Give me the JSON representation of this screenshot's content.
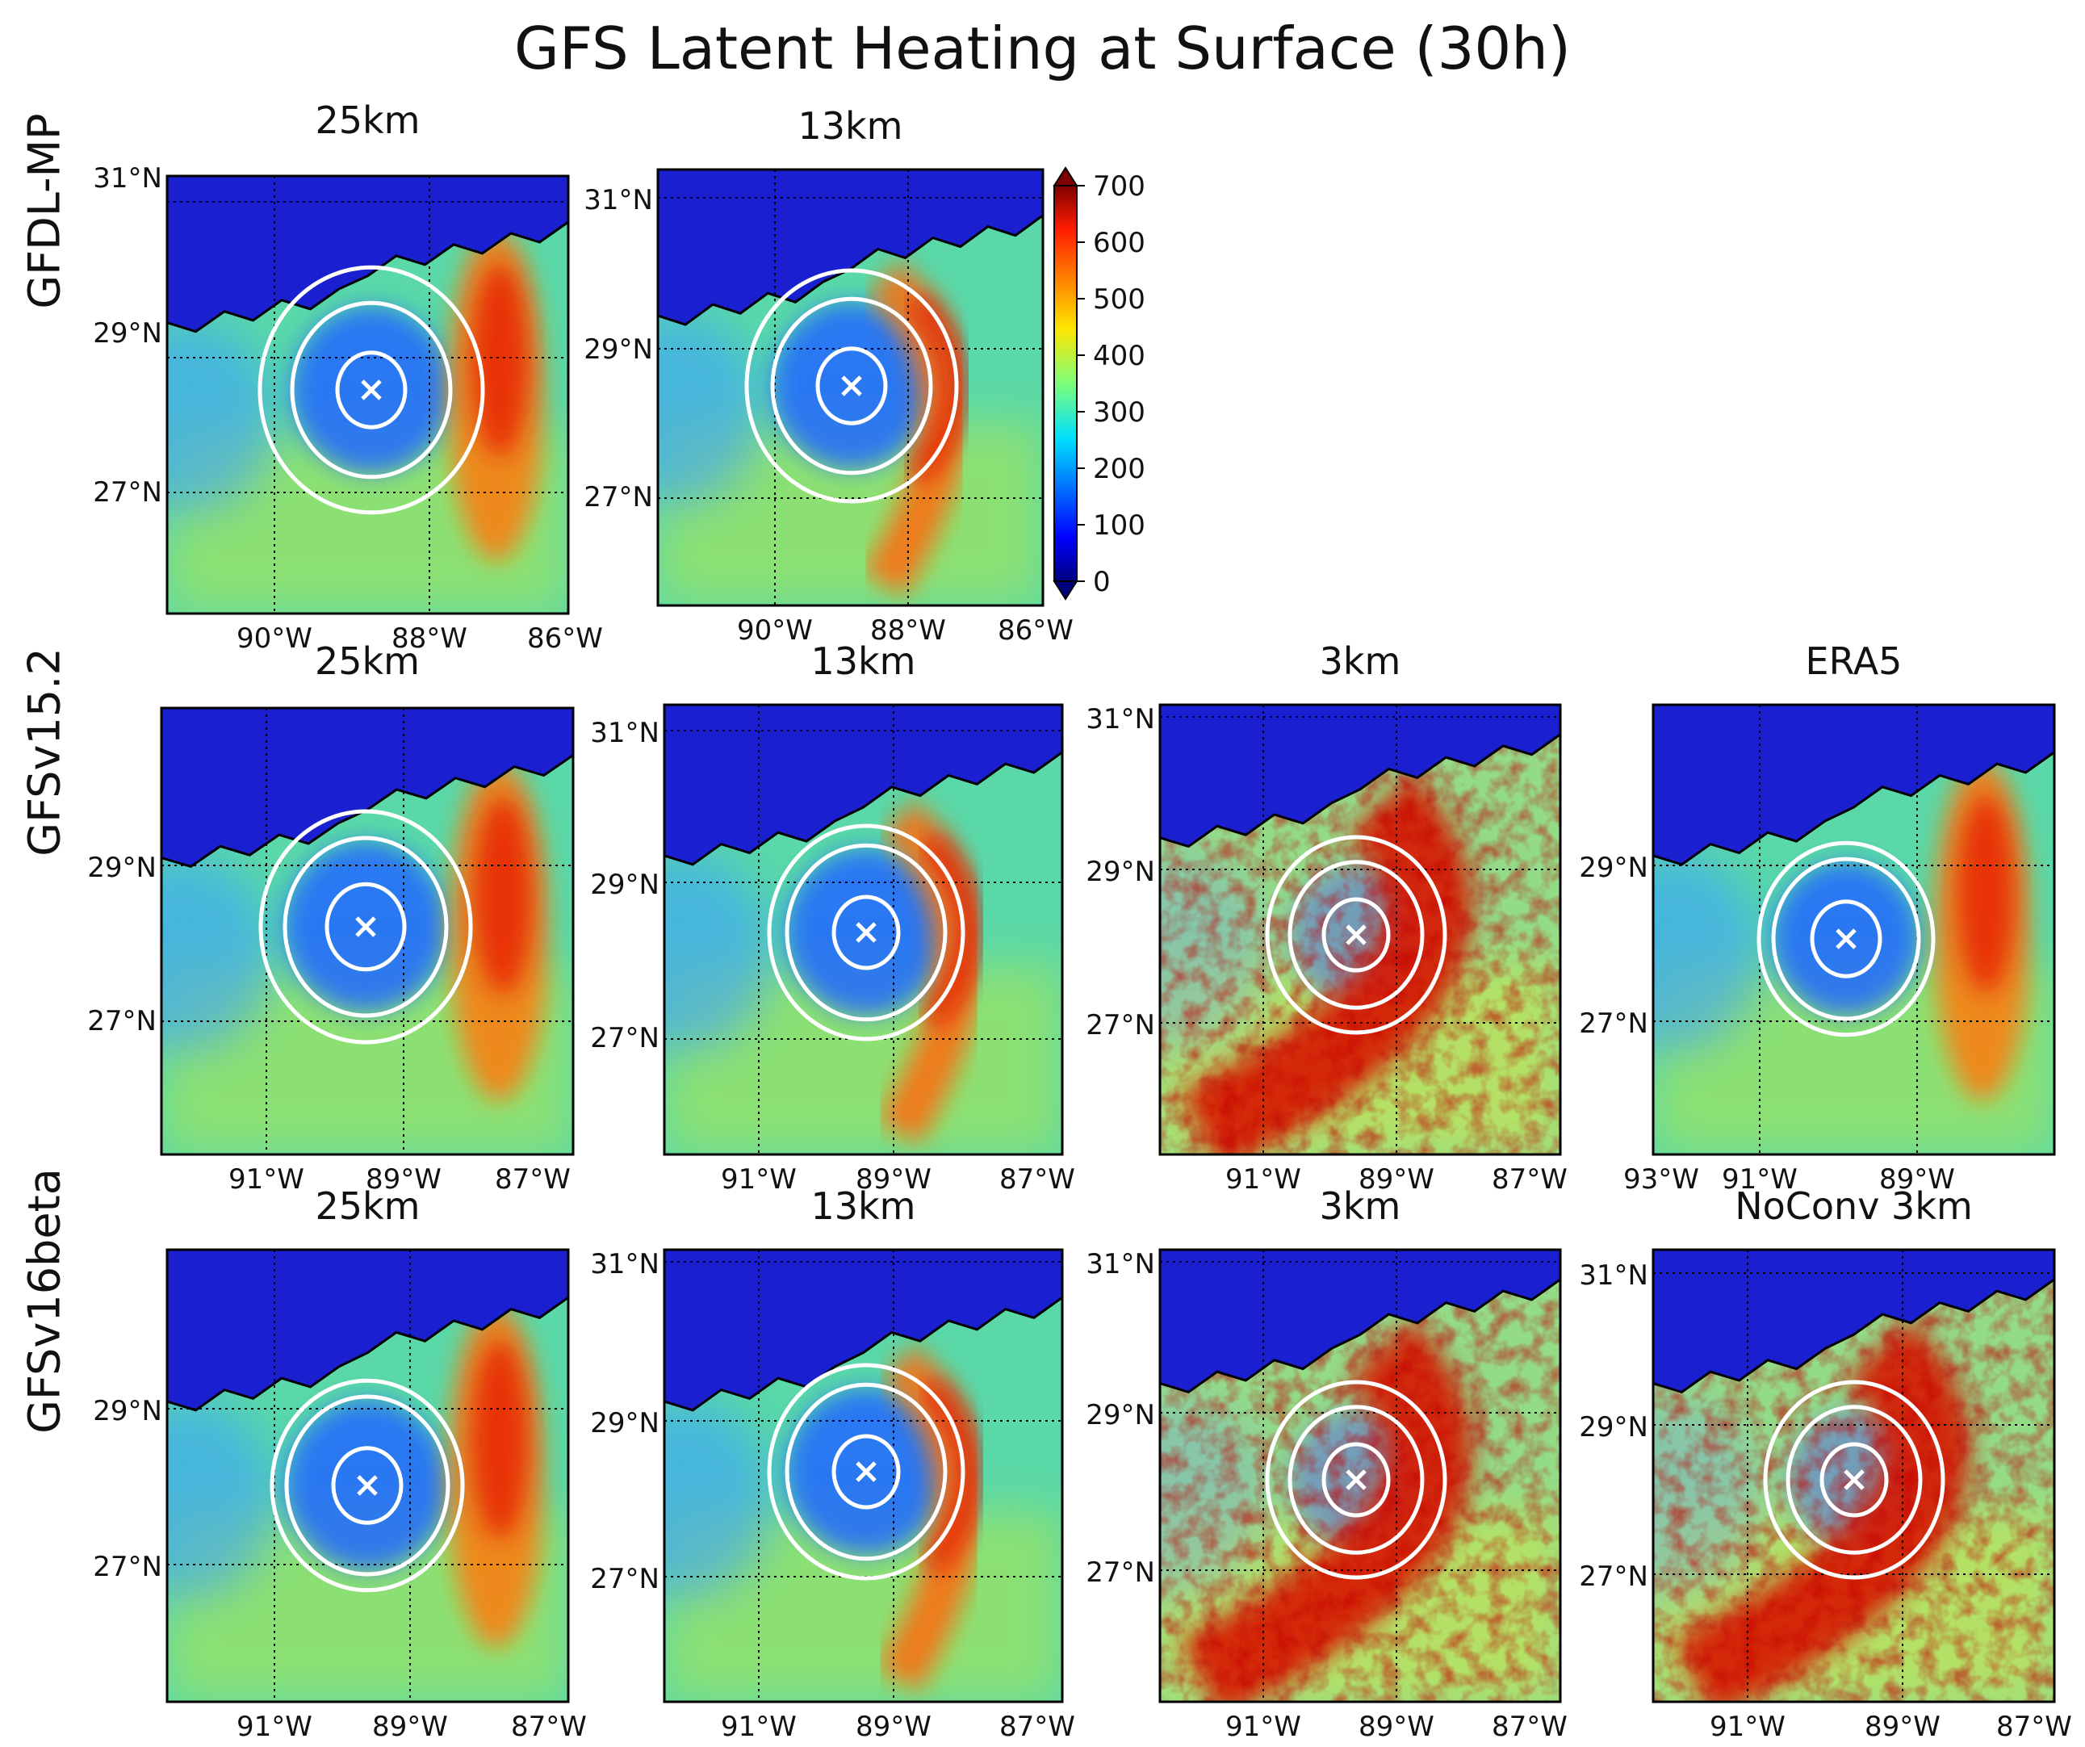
{
  "figure_title": "GFS Latent Heating at Surface (30h)",
  "row_labels": [
    "GFDL-MP",
    "GFSv15.2",
    "GFSv16beta"
  ],
  "colorbar": {
    "ticks": [
      "700",
      "600",
      "500",
      "400",
      "300",
      "200",
      "100",
      "0"
    ],
    "min": 0,
    "max": 700,
    "colormap": "jet"
  },
  "colors": {
    "land": "#1a1fd0",
    "ocean_mid": "#5ad8a8",
    "coast": "#000000",
    "rings": "#ffffff",
    "center_marker": "#ffffff"
  },
  "panels": [
    {
      "title": "25km",
      "lat_ticks": [
        "31°N",
        "29°N",
        "27°N"
      ],
      "lon_ticks": [
        "90°W",
        "88°W",
        "86°W"
      ]
    },
    {
      "title": "13km",
      "lat_ticks": [
        "31°N",
        "29°N",
        "27°N"
      ],
      "lon_ticks": [
        "90°W",
        "88°W",
        "86°W"
      ]
    },
    {
      "title": "25km",
      "lat_ticks": [
        "29°N",
        "27°N"
      ],
      "lon_ticks": [
        "91°W",
        "89°W",
        "87°W"
      ]
    },
    {
      "title": "13km",
      "lat_ticks": [
        "31°N",
        "29°N",
        "27°N"
      ],
      "lon_ticks": [
        "91°W",
        "89°W",
        "87°W"
      ]
    },
    {
      "title": "3km",
      "lat_ticks": [
        "31°N",
        "29°N",
        "27°N"
      ],
      "lon_ticks": [
        "91°W",
        "89°W",
        "87°W"
      ]
    },
    {
      "title": "ERA5",
      "lat_ticks": [
        "29°N",
        "27°N"
      ],
      "lon_ticks": [
        "93°W",
        "91°W",
        "89°W"
      ]
    },
    {
      "title": "25km",
      "lat_ticks": [
        "29°N",
        "27°N"
      ],
      "lon_ticks": [
        "91°W",
        "89°W",
        "87°W"
      ]
    },
    {
      "title": "13km",
      "lat_ticks": [
        "31°N",
        "29°N",
        "27°N"
      ],
      "lon_ticks": [
        "91°W",
        "89°W",
        "87°W"
      ]
    },
    {
      "title": "3km",
      "lat_ticks": [
        "31°N",
        "29°N",
        "27°N"
      ],
      "lon_ticks": [
        "91°W",
        "89°W",
        "87°W"
      ]
    },
    {
      "title": "NoConv 3km",
      "lat_ticks": [
        "31°N",
        "29°N",
        "27°N"
      ],
      "lon_ticks": [
        "91°W",
        "89°W",
        "87°W"
      ]
    }
  ],
  "chart_data": {
    "type": "heatmap",
    "title": "GFS Latent Heating at Surface (30h)",
    "variable": "surface latent heat flux",
    "value_range": [
      0,
      700
    ],
    "rows": [
      "GFDL-MP",
      "GFSv15.2",
      "GFSv16beta"
    ],
    "panels": [
      {
        "row": "GFDL-MP",
        "title": "25km",
        "lat_range": [
          25.5,
          31.3
        ],
        "lon_range": [
          -91.5,
          -85.9
        ],
        "storm_center": {
          "lat": 28.3,
          "lon": -88.8
        },
        "max_band": "east of center (~600-650)"
      },
      {
        "row": "GFDL-MP",
        "title": "13km",
        "lat_range": [
          25.5,
          31.3
        ],
        "lon_range": [
          -91.5,
          -85.9
        ],
        "storm_center": {
          "lat": 28.4,
          "lon": -88.8
        },
        "max_band": "east arc (~600-650)"
      },
      {
        "row": "GFSv15.2",
        "title": "25km",
        "lat_range": [
          25.4,
          30.4
        ],
        "lon_range": [
          -92.0,
          -86.8
        ],
        "storm_center": {
          "lat": 28.2,
          "lon": -89.4
        },
        "max_band": "east of center (~600)"
      },
      {
        "row": "GFSv15.2",
        "title": "13km",
        "lat_range": [
          25.4,
          31.0
        ],
        "lon_range": [
          -92.0,
          -86.8
        ],
        "storm_center": {
          "lat": 28.3,
          "lon": -89.4
        },
        "max_band": "east arc (~600)"
      },
      {
        "row": "GFSv15.2",
        "title": "3km",
        "lat_range": [
          25.4,
          31.0
        ],
        "lon_range": [
          -92.0,
          -86.8
        ],
        "storm_center": {
          "lat": 28.2,
          "lon": -89.5
        },
        "max_band": "spiral band (~700)"
      },
      {
        "row": "GFSv15.2",
        "title": "ERA5",
        "lat_range": [
          25.4,
          30.4
        ],
        "lon_range": [
          -93.0,
          -87.8
        ],
        "storm_center": {
          "lat": 28.1,
          "lon": -89.8
        },
        "max_band": "east (~550)"
      },
      {
        "row": "GFSv16beta",
        "title": "25km",
        "lat_range": [
          25.4,
          30.4
        ],
        "lon_range": [
          -92.0,
          -86.8
        ],
        "storm_center": {
          "lat": 28.0,
          "lon": -89.4
        },
        "max_band": "east (~550)"
      },
      {
        "row": "GFSv16beta",
        "title": "13km",
        "lat_range": [
          25.4,
          31.0
        ],
        "lon_range": [
          -92.0,
          -86.8
        ],
        "storm_center": {
          "lat": 28.2,
          "lon": -89.4
        },
        "max_band": "east (~550)"
      },
      {
        "row": "GFSv16beta",
        "title": "3km",
        "lat_range": [
          25.4,
          31.0
        ],
        "lon_range": [
          -92.0,
          -86.8
        ],
        "storm_center": {
          "lat": 28.2,
          "lon": -89.5
        },
        "max_band": "spiral band (~700)"
      },
      {
        "row": "GFSv16beta",
        "title": "NoConv 3km",
        "lat_range": [
          25.4,
          31.0
        ],
        "lon_range": [
          -92.0,
          -86.8
        ],
        "storm_center": {
          "lat": 28.2,
          "lon": -89.5
        },
        "max_band": "spiral band (~700)"
      }
    ]
  }
}
